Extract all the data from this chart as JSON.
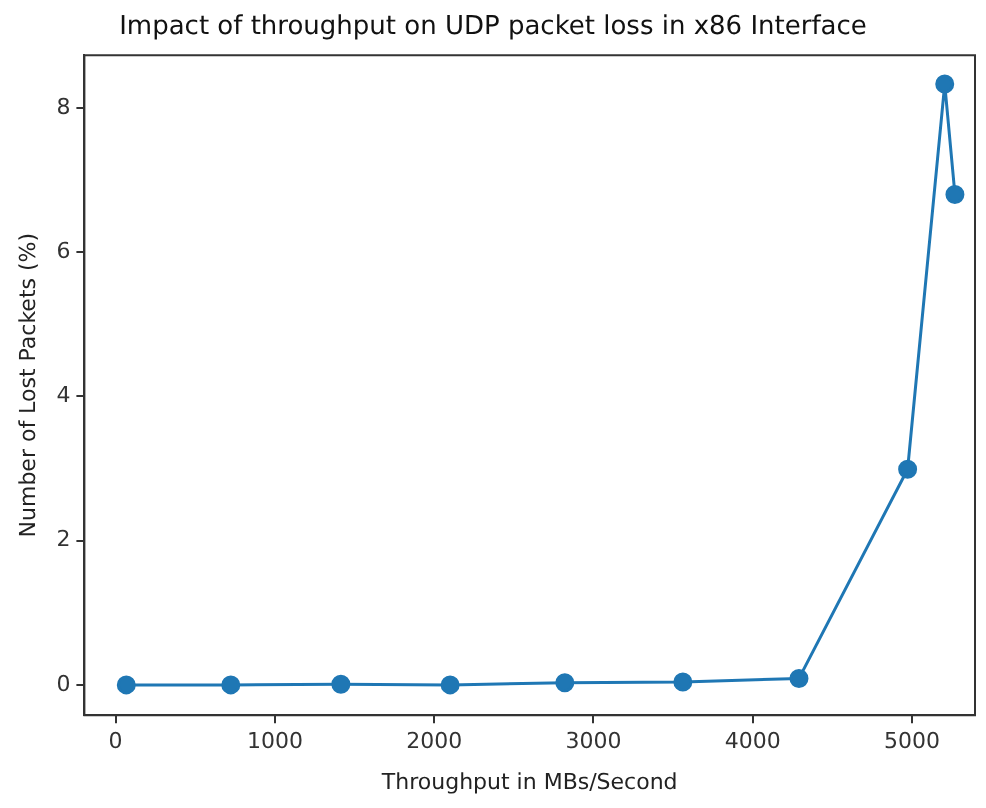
{
  "chart_data": {
    "type": "line",
    "title": "Impact of throughput on UDP packet loss in x86 Interface",
    "xlabel": "Throughput in MBs/Second",
    "ylabel": "Number of Lost Packets (%)",
    "x": [
      67,
      723,
      1414,
      2100,
      2820,
      3561,
      4290,
      4972,
      5205,
      5269
    ],
    "series": [
      {
        "color": "#1f77b4",
        "values": [
          0,
          0,
          0.01,
          0,
          0.03,
          0.04,
          0.09,
          2.99,
          8.33,
          6.8
        ]
      }
    ],
    "xlim": [
      -196,
      5395
    ],
    "xticks": [
      0,
      1000,
      2000,
      3000,
      4000,
      5000
    ],
    "ylim": [
      -0.42,
      8.73
    ],
    "yticks": [
      0,
      2,
      4,
      6,
      8
    ],
    "marker": "circle",
    "line_style": "solid",
    "grid": false,
    "legend": false
  }
}
